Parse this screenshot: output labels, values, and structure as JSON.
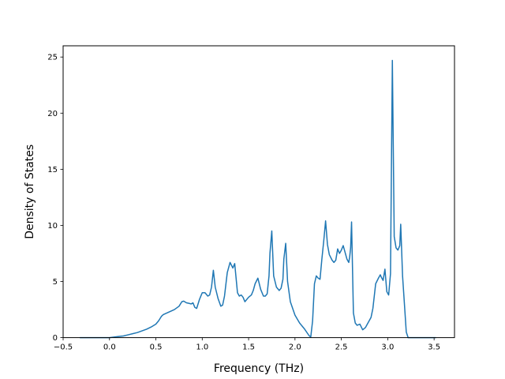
{
  "chart_data": {
    "type": "line",
    "title": "",
    "xlabel": "Frequency (THz)",
    "ylabel": "Density of States",
    "xlim": [
      -0.5,
      3.72
    ],
    "ylim": [
      0,
      26
    ],
    "xticks": [
      -0.5,
      0.0,
      0.5,
      1.0,
      1.5,
      2.0,
      2.5,
      3.0,
      3.5
    ],
    "xtick_labels": [
      "−0.5",
      "0.0",
      "0.5",
      "1.0",
      "1.5",
      "2.0",
      "2.5",
      "3.0",
      "3.5"
    ],
    "yticks": [
      0,
      5,
      10,
      15,
      20,
      25
    ],
    "ytick_labels": [
      "0",
      "5",
      "10",
      "15",
      "20",
      "25"
    ],
    "grid": false,
    "legend": "none",
    "series": [
      {
        "color": "#1f77b4",
        "x": [
          -0.32,
          -0.2,
          -0.1,
          0.0,
          0.05,
          0.1,
          0.15,
          0.2,
          0.25,
          0.3,
          0.35,
          0.4,
          0.45,
          0.5,
          0.53,
          0.56,
          0.58,
          0.62,
          0.66,
          0.7,
          0.75,
          0.78,
          0.8,
          0.83,
          0.86,
          0.88,
          0.9,
          0.92,
          0.94,
          0.97,
          1.0,
          1.03,
          1.06,
          1.08,
          1.1,
          1.12,
          1.14,
          1.17,
          1.2,
          1.22,
          1.24,
          1.27,
          1.3,
          1.33,
          1.35,
          1.38,
          1.4,
          1.42,
          1.44,
          1.46,
          1.5,
          1.53,
          1.55,
          1.57,
          1.6,
          1.63,
          1.66,
          1.68,
          1.7,
          1.72,
          1.73,
          1.75,
          1.77,
          1.8,
          1.83,
          1.85,
          1.87,
          1.88,
          1.9,
          1.92,
          1.95,
          2.0,
          2.05,
          2.1,
          2.15,
          2.17,
          2.19,
          2.21,
          2.23,
          2.25,
          2.27,
          2.29,
          2.31,
          2.33,
          2.35,
          2.37,
          2.4,
          2.42,
          2.44,
          2.46,
          2.48,
          2.5,
          2.52,
          2.54,
          2.56,
          2.58,
          2.59,
          2.6,
          2.61,
          2.63,
          2.65,
          2.67,
          2.7,
          2.73,
          2.76,
          2.78,
          2.8,
          2.82,
          2.84,
          2.87,
          2.9,
          2.92,
          2.93,
          2.95,
          2.97,
          2.99,
          3.01,
          3.03,
          3.05,
          3.07,
          3.09,
          3.11,
          3.13,
          3.14,
          3.16,
          3.18,
          3.2,
          3.22,
          3.3,
          3.4,
          3.5,
          3.52
        ],
        "y": [
          0.0,
          0.0,
          0.0,
          0.0,
          0.05,
          0.1,
          0.15,
          0.25,
          0.35,
          0.45,
          0.6,
          0.75,
          0.95,
          1.2,
          1.5,
          1.9,
          2.05,
          2.2,
          2.35,
          2.5,
          2.8,
          3.2,
          3.25,
          3.1,
          3.05,
          3.0,
          3.1,
          2.7,
          2.6,
          3.4,
          4.0,
          4.0,
          3.7,
          3.8,
          4.5,
          6.0,
          4.5,
          3.5,
          2.8,
          2.9,
          3.7,
          5.8,
          6.7,
          6.2,
          6.6,
          4.0,
          3.7,
          3.8,
          3.6,
          3.2,
          3.6,
          3.8,
          4.2,
          4.8,
          5.3,
          4.3,
          3.7,
          3.7,
          3.9,
          5.5,
          7.5,
          9.5,
          5.5,
          4.5,
          4.2,
          4.4,
          5.2,
          7.0,
          8.4,
          5.0,
          3.2,
          2.0,
          1.3,
          0.8,
          0.2,
          0.05,
          1.5,
          4.8,
          5.5,
          5.3,
          5.2,
          7.0,
          8.6,
          10.4,
          8.3,
          7.4,
          6.9,
          6.7,
          6.9,
          7.9,
          7.5,
          7.8,
          8.2,
          7.6,
          7.0,
          6.7,
          7.2,
          8.0,
          10.3,
          2.2,
          1.3,
          1.1,
          1.2,
          0.7,
          0.9,
          1.2,
          1.5,
          1.8,
          2.6,
          4.8,
          5.3,
          5.6,
          5.4,
          5.1,
          6.1,
          4.1,
          3.8,
          5.7,
          24.7,
          9.0,
          8.0,
          7.8,
          8.2,
          10.1,
          5.5,
          3.0,
          0.5,
          0.0,
          0.0,
          0.0,
          0.0,
          0.0
        ]
      }
    ]
  }
}
